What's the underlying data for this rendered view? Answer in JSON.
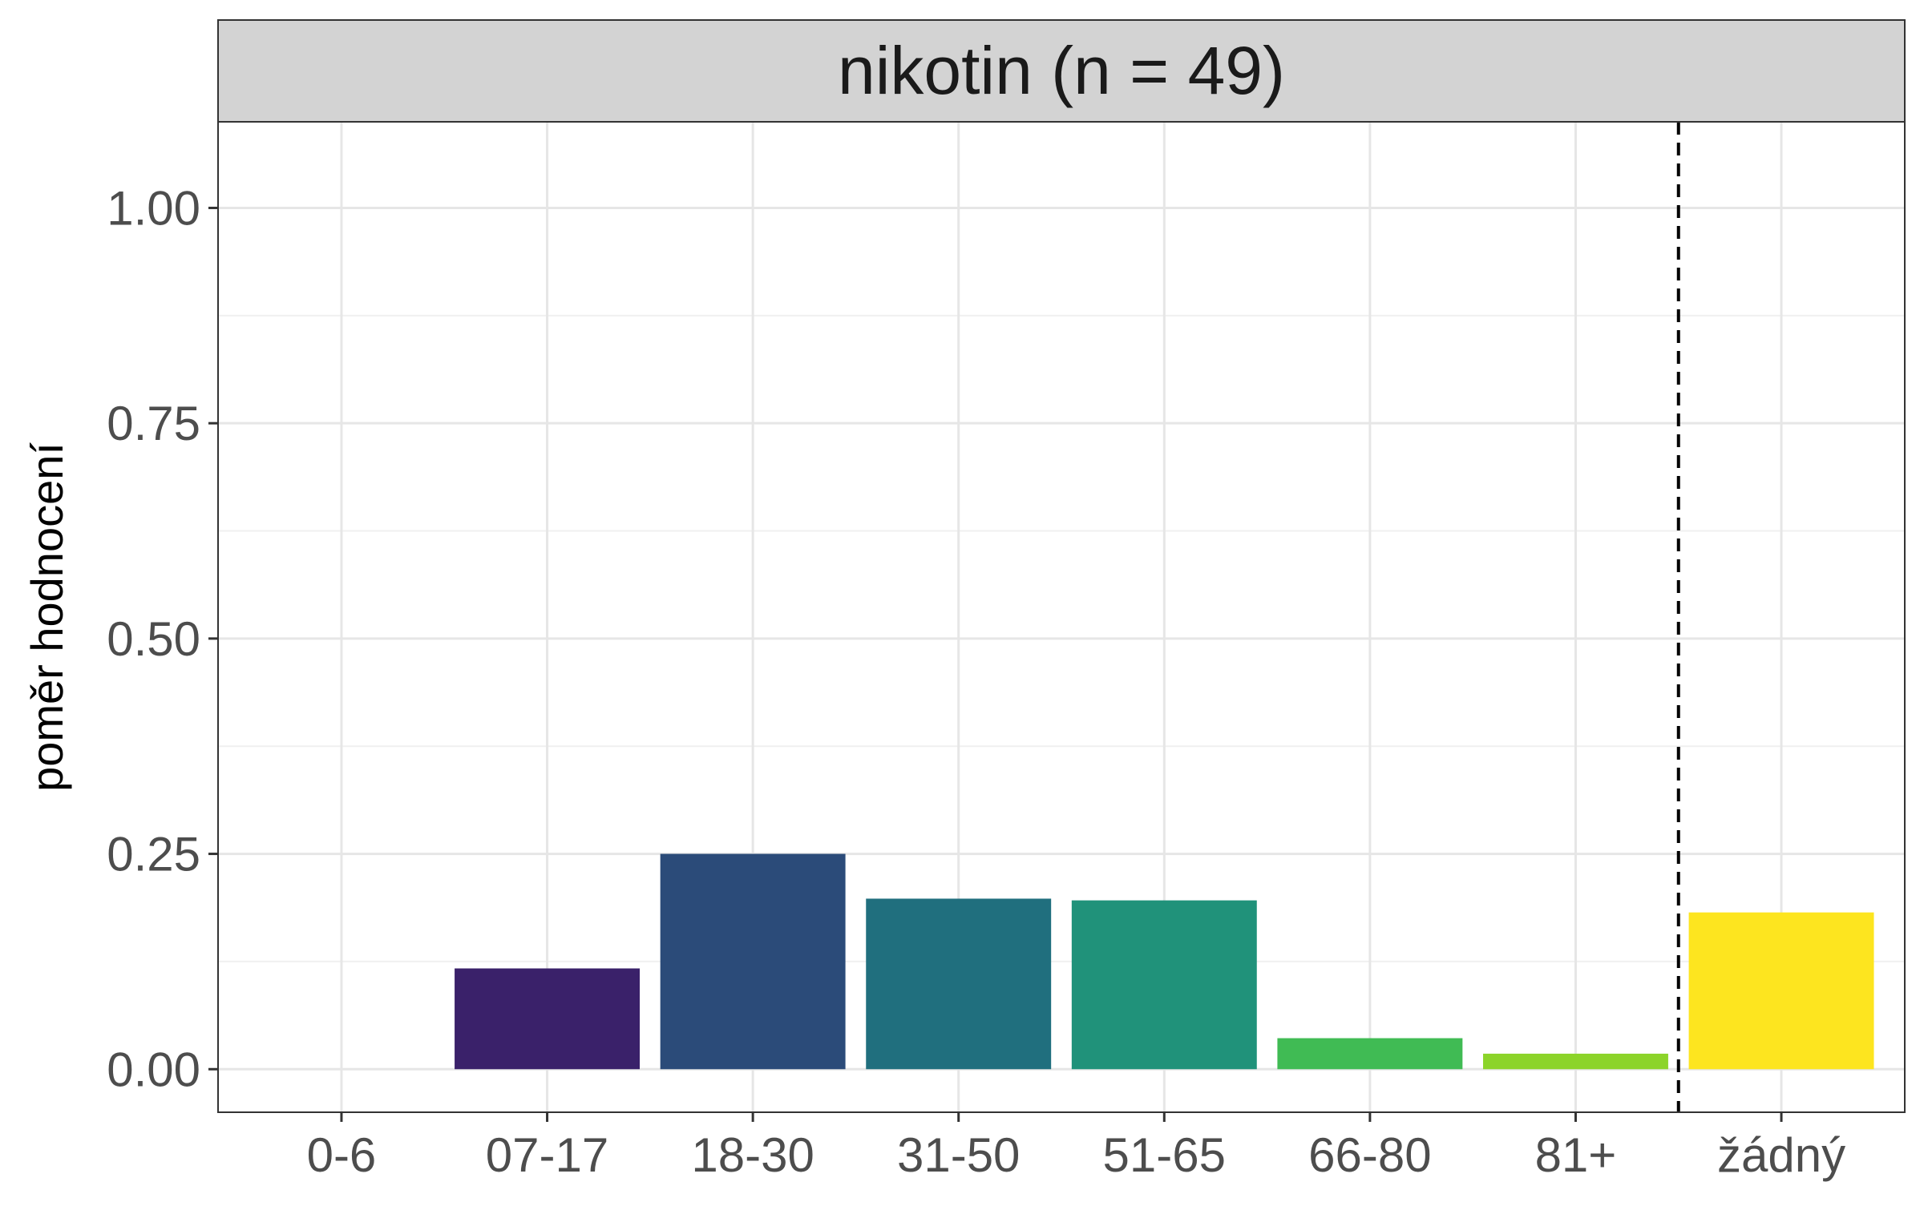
{
  "chart_data": {
    "type": "bar",
    "facet_title": "nikotin (n = 49)",
    "xlabel": "",
    "ylabel": "poměr hodnocení",
    "categories": [
      "0-6",
      "07-17",
      "18-30",
      "31-50",
      "51-65",
      "66-80",
      "81+",
      "žádný"
    ],
    "values": [
      0.0,
      0.117,
      0.25,
      0.198,
      0.196,
      0.036,
      0.018,
      0.182
    ],
    "colors": [
      "#440154",
      "#3a216a",
      "#2b4b79",
      "#206f7e",
      "#20927a",
      "#40bb54",
      "#8cd42a",
      "#fde51f"
    ],
    "ylim": [
      -0.05,
      1.1
    ],
    "yticks": [
      0.0,
      0.25,
      0.5,
      0.75,
      1.0
    ],
    "ytick_labels": [
      "0.00",
      "0.25",
      "0.50",
      "0.75",
      "1.00"
    ],
    "reference_line": {
      "between_categories": [
        "81+",
        "žádný"
      ],
      "style": "dashed",
      "color": "#000000"
    },
    "grid": true,
    "theme": {
      "panel_border": "#333333",
      "strip_fill": "#d3d3d3",
      "grid_major": "#e6e6e6",
      "grid_minor": "#f0f0f0",
      "tick_text": "#4d4d4d",
      "title_text": "#1a1a1a"
    }
  }
}
